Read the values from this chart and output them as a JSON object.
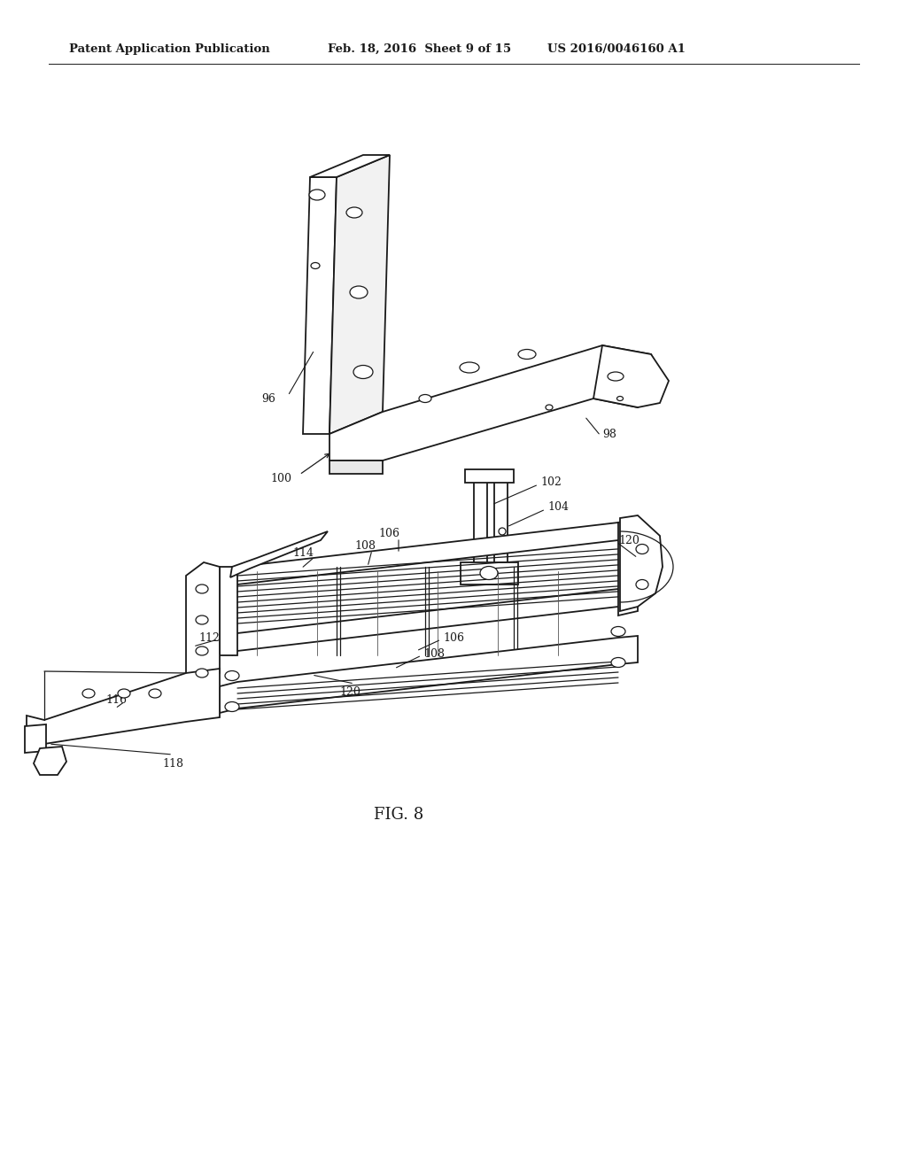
{
  "header_left": "Patent Application Publication",
  "header_mid": "Feb. 18, 2016  Sheet 9 of 15",
  "header_right": "US 2016/0046160 A1",
  "figure_label": "FIG. 8",
  "background_color": "#ffffff",
  "line_color": "#1a1a1a",
  "header_fontsize": 9.5,
  "fig_label_fontsize": 13,
  "ref_fontsize": 9,
  "page_width": 10.24,
  "page_height": 13.2
}
